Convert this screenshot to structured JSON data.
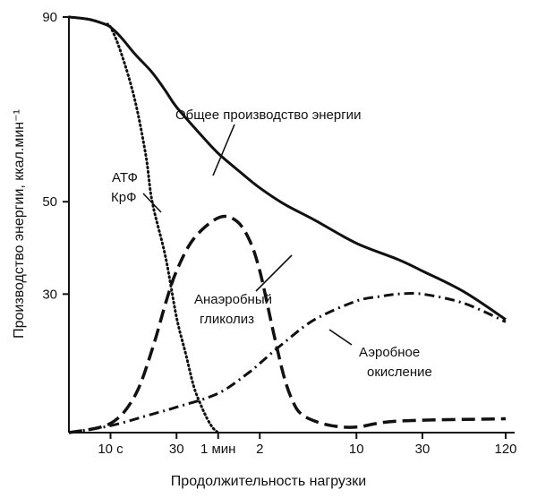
{
  "chart_data": {
    "type": "line",
    "xlabel": "Продолжительность нагрузки",
    "ylabel": "Производство энергии, ккал.мин⁻¹",
    "x_scale": "log",
    "x_unit": "s",
    "xlim": [
      5,
      7200
    ],
    "ylim": [
      0,
      90
    ],
    "x_ticks": [
      {
        "label": "10 с",
        "value": 10
      },
      {
        "label": "30",
        "value": 30
      },
      {
        "label": "1 мин",
        "value": 60
      },
      {
        "label": "2",
        "value": 120
      },
      {
        "label": "10",
        "value": 600
      },
      {
        "label": "30",
        "value": 1800
      },
      {
        "label": "120",
        "value": 7200
      }
    ],
    "y_ticks": [
      {
        "label": "30",
        "value": 30
      },
      {
        "label": "50",
        "value": 50
      },
      {
        "label": "90",
        "value": 90
      }
    ],
    "series": [
      {
        "name": "Общее производство энергии",
        "style": "solid",
        "color": "#111111",
        "x": [
          5,
          7,
          9,
          10,
          12,
          15,
          20,
          25,
          30,
          45,
          60,
          90,
          120,
          180,
          300,
          600,
          1200,
          1800,
          3600,
          7200
        ],
        "y": [
          90,
          89.5,
          88.5,
          87.8,
          85.5,
          82,
          78,
          74,
          70.5,
          64.5,
          60.5,
          56,
          53,
          49.5,
          46,
          41,
          37.5,
          35,
          30.5,
          24.5
        ]
      },
      {
        "name": "АТФ КрФ",
        "style": "dotted",
        "color": "#111111",
        "x": [
          5,
          7,
          9,
          10,
          12,
          15,
          18,
          20,
          25,
          30,
          35,
          40,
          45,
          50,
          55,
          60
        ],
        "y": [
          90,
          89.5,
          88.5,
          87.8,
          82,
          72,
          60,
          50,
          38,
          25,
          17,
          10,
          6,
          3,
          1,
          0
        ]
      },
      {
        "name": "Анаэробный гликолиз",
        "style": "dashed",
        "color": "#111111",
        "x": [
          5,
          10,
          15,
          20,
          25,
          30,
          40,
          60,
          80,
          100,
          120,
          150,
          180,
          210,
          240,
          300,
          400,
          600,
          1200,
          7200
        ],
        "y": [
          0,
          2,
          8,
          18,
          28,
          35,
          42,
          46.5,
          46,
          42,
          35,
          22,
          12,
          6.5,
          4,
          2.5,
          1.5,
          1.2,
          2.5,
          3
        ]
      },
      {
        "name": "Аэробное окисление",
        "style": "dashdot",
        "color": "#111111",
        "x": [
          5,
          10,
          20,
          30,
          60,
          100,
          120,
          180,
          300,
          600,
          900,
          1200,
          1800,
          3600,
          7200
        ],
        "y": [
          0,
          1.5,
          4,
          5.5,
          8.5,
          13,
          15,
          19.5,
          24.5,
          28.5,
          29.5,
          30,
          30,
          28,
          24
        ]
      }
    ],
    "annotations": [
      {
        "text": "Общее производство энергии"
      },
      {
        "text": "АТФ"
      },
      {
        "text": "КрФ"
      },
      {
        "text": "Анаэробный"
      },
      {
        "text": "гликолиз"
      },
      {
        "text": "Аэробное"
      },
      {
        "text": "окисление"
      }
    ],
    "grid": false,
    "legend": "none"
  }
}
